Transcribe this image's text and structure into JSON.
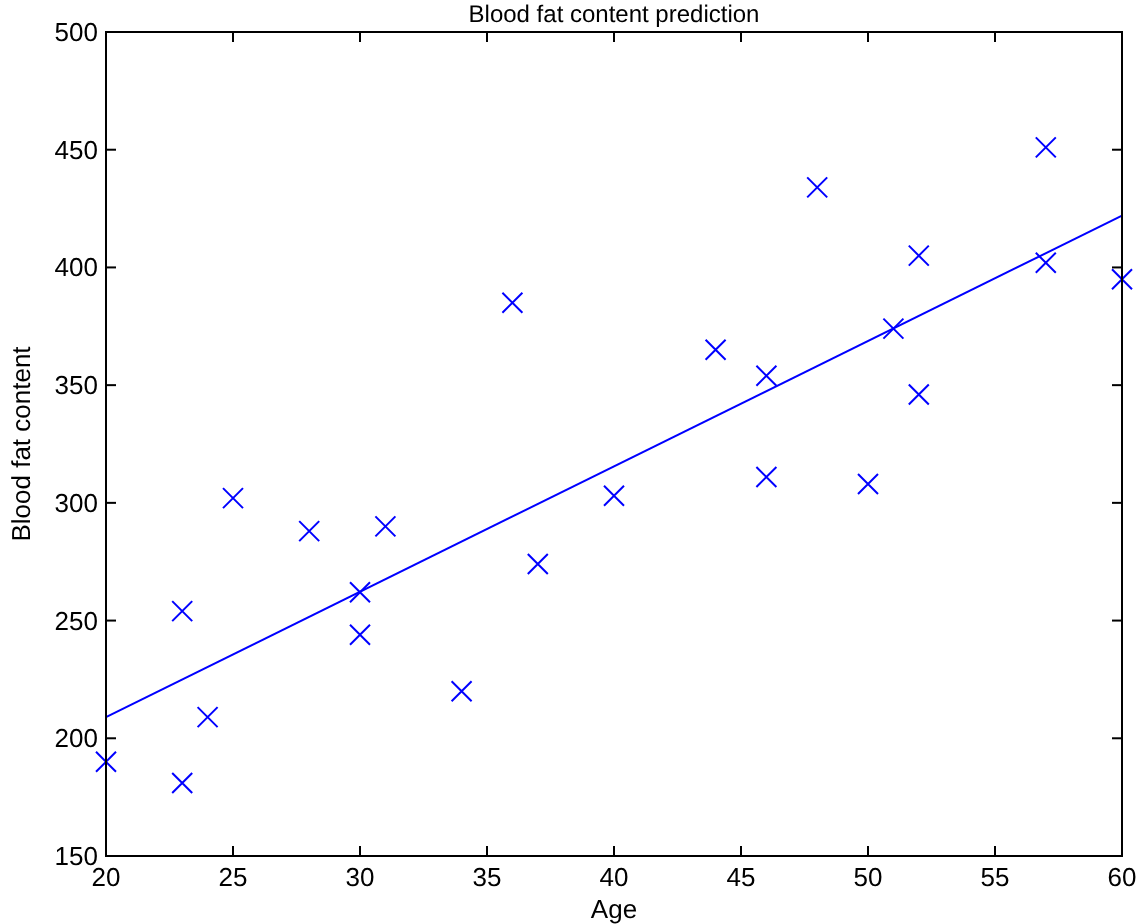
{
  "chart_data": {
    "type": "scatter",
    "title": "Blood fat content prediction",
    "xlabel": "Age",
    "ylabel": "Blood fat content",
    "xlim": [
      20,
      60
    ],
    "xticks": [
      20,
      25,
      30,
      35,
      40,
      45,
      50,
      55,
      60
    ],
    "ylim": [
      150,
      500
    ],
    "yticks": [
      150,
      200,
      250,
      300,
      350,
      400,
      450,
      500
    ],
    "grid": false,
    "series": [
      {
        "color": "#0000ff",
        "marker": "cross",
        "x": [
          20,
          23,
          23,
          24,
          25,
          28,
          30,
          30,
          31,
          34,
          36,
          37,
          40,
          44,
          46,
          46,
          48,
          50,
          51,
          52,
          52,
          57,
          57,
          60
        ],
        "values": [
          190,
          181,
          254,
          209,
          302,
          288,
          262,
          244,
          290,
          220,
          385,
          274,
          303,
          365,
          354,
          311,
          434,
          308,
          374,
          405,
          346,
          451,
          402,
          395
        ]
      },
      {
        "type": "line",
        "color": "#0000ff",
        "line_style": "solid",
        "x": [
          20,
          60
        ],
        "values": [
          209,
          422
        ]
      }
    ]
  }
}
